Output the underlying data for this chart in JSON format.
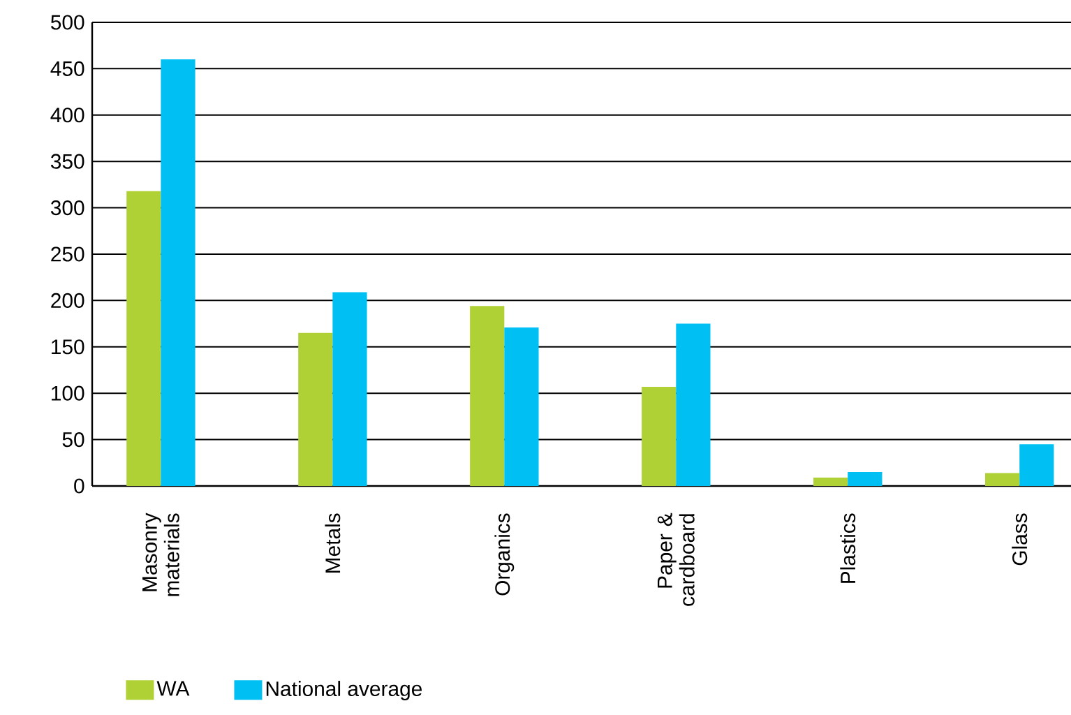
{
  "chart_data": {
    "type": "bar",
    "categories": [
      "Masonry materials",
      "Metals",
      "Organics",
      "Paper & cardboard",
      "Plastics",
      "Glass"
    ],
    "series": [
      {
        "name": "WA",
        "color": "#afd136",
        "values": [
          318,
          165,
          194,
          107,
          9,
          14
        ]
      },
      {
        "name": "National average",
        "color": "#00bff2",
        "values": [
          460,
          209,
          171,
          175,
          15,
          45
        ]
      }
    ],
    "ylim": [
      0,
      500
    ],
    "yticks": [
      0,
      50,
      100,
      150,
      200,
      250,
      300,
      350,
      400,
      450,
      500
    ],
    "grid": "y",
    "legend": "bottom left"
  }
}
